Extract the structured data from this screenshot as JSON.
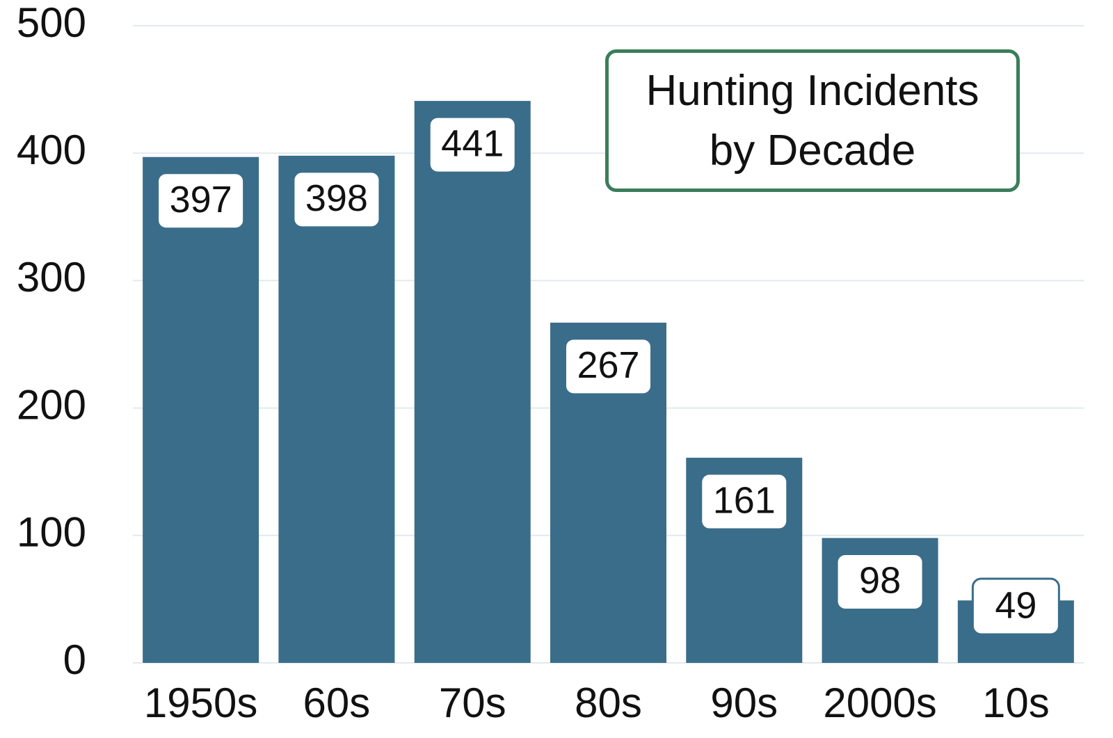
{
  "chart_data": {
    "type": "bar",
    "title": "Hunting Incidents by Decade",
    "categories": [
      "1950s",
      "60s",
      "70s",
      "80s",
      "90s",
      "2000s",
      "10s"
    ],
    "values": [
      397,
      398,
      441,
      267,
      161,
      98,
      49
    ],
    "color": "#3a6d8a",
    "ylim": [
      0,
      500
    ],
    "yticks": [
      0,
      100,
      200,
      300,
      400,
      500
    ],
    "grid": true
  }
}
